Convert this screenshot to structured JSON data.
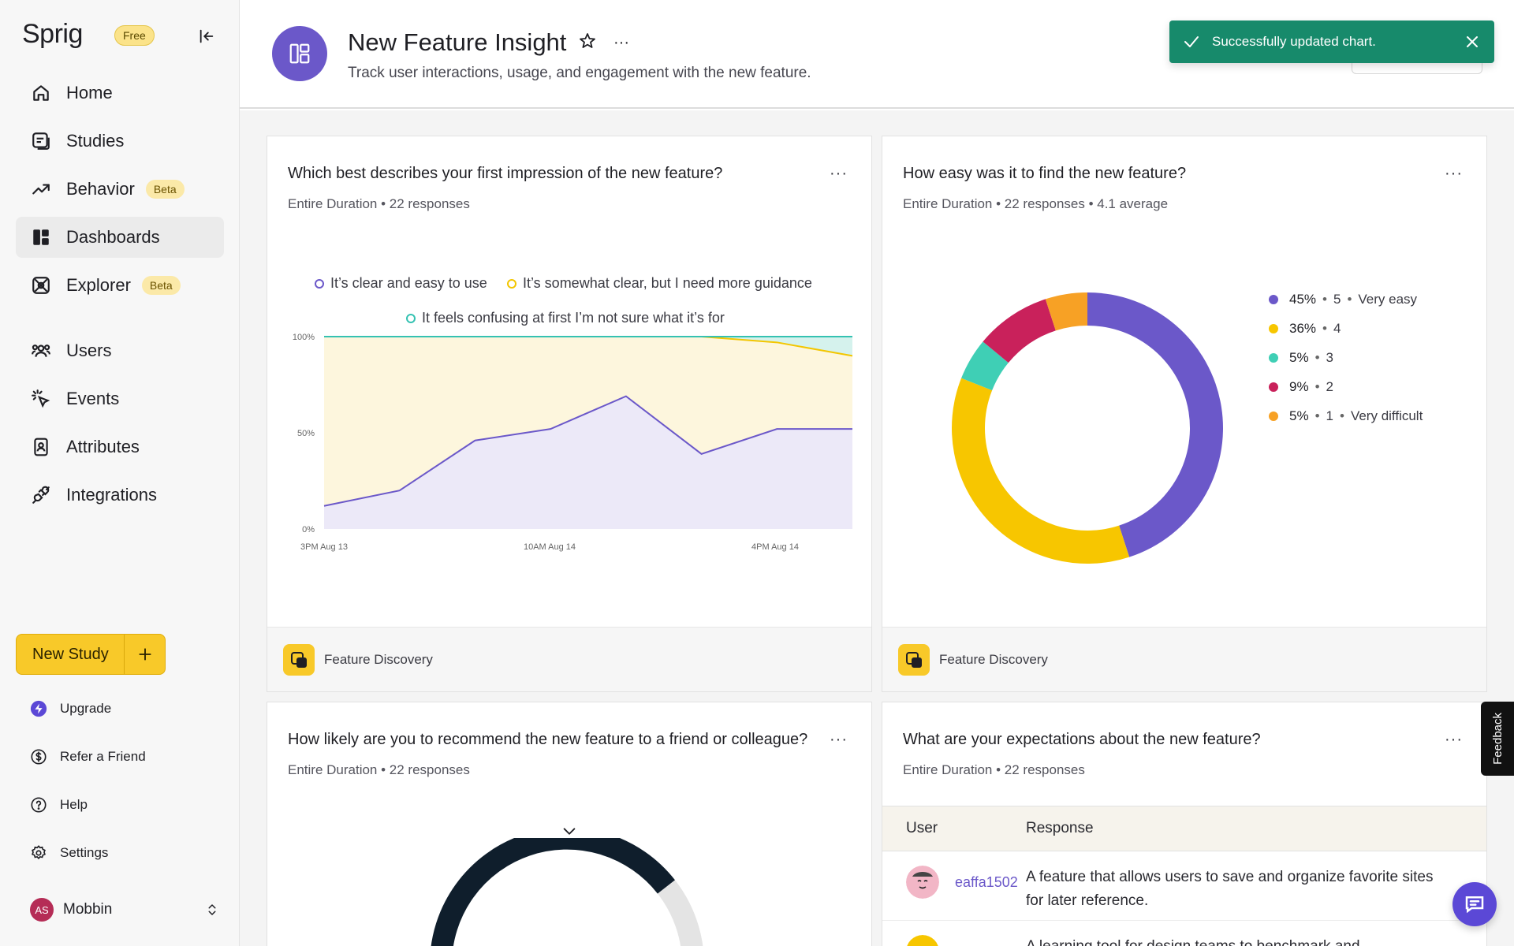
{
  "sidebar": {
    "logo": "Sprig",
    "plan_badge": "Free",
    "nav": [
      {
        "label": "Home",
        "icon": "home-icon"
      },
      {
        "label": "Studies",
        "icon": "studies-icon"
      },
      {
        "label": "Behavior",
        "icon": "trend-icon",
        "badge": "Beta"
      },
      {
        "label": "Dashboards",
        "icon": "dashboard-icon",
        "active": true
      },
      {
        "label": "Explorer",
        "icon": "explorer-icon",
        "badge": "Beta"
      },
      {
        "label": "Users",
        "icon": "users-icon"
      },
      {
        "label": "Events",
        "icon": "events-icon"
      },
      {
        "label": "Attributes",
        "icon": "attributes-icon"
      },
      {
        "label": "Integrations",
        "icon": "plug-icon"
      }
    ],
    "new_study_label": "New Study",
    "sub_nav": [
      {
        "label": "Upgrade",
        "icon": "upgrade-icon"
      },
      {
        "label": "Refer a Friend",
        "icon": "dollar-icon"
      },
      {
        "label": "Help",
        "icon": "help-icon"
      },
      {
        "label": "Settings",
        "icon": "gear-icon"
      }
    ],
    "user": {
      "initials": "AS",
      "name": "Mobbin"
    }
  },
  "header": {
    "title": "New Feature Insight",
    "subtitle": "Track user interactions, usage, and engagement with the new feature."
  },
  "toast": {
    "message": "Successfully updated chart."
  },
  "cards": {
    "c1": {
      "title": "Which best describes your first impression of the new feature?",
      "meta": "Entire Duration • 22 responses",
      "footer": "Feature Discovery"
    },
    "c2": {
      "title": "How easy was it to find the new feature?",
      "meta": "Entire Duration • 22 responses • 4.1 average",
      "footer": "Feature Discovery"
    },
    "c3": {
      "title": "How likely are you to recommend the new feature to a friend or colleague?",
      "meta": "Entire Duration • 22 responses"
    },
    "c4": {
      "title": "What are your expectations about the new feature?",
      "meta": "Entire Duration • 22 responses",
      "columns": [
        "User",
        "Response"
      ],
      "rows": [
        {
          "user": "eaffa1502",
          "response": "A feature that allows users to save and organize favorite sites for later reference."
        },
        {
          "user": "",
          "response": "A learning tool for design teams to benchmark and"
        }
      ]
    }
  },
  "chart_data": [
    {
      "type": "area",
      "stacked": "percent",
      "legend": [
        "It’s clear and easy to use",
        "It’s somewhat clear, but I need more guidance",
        "It feels confusing at first I’m not sure what it’s for"
      ],
      "colors": [
        "#6b58c9",
        "#f3c600",
        "#35c2b2"
      ],
      "x_ticks": [
        "3PM Aug 13",
        "10AM Aug 14",
        "4PM Aug 14"
      ],
      "y_ticks": [
        "100%",
        "50%",
        "0%"
      ],
      "ylim": [
        0,
        100
      ],
      "series": [
        {
          "values": [
            12,
            20,
            46,
            52,
            69,
            39,
            52,
            52
          ]
        },
        {
          "values": [
            88,
            80,
            54,
            48,
            31,
            61,
            45,
            38
          ]
        },
        {
          "values": [
            0,
            0,
            0,
            0,
            0,
            0,
            3,
            10
          ]
        }
      ]
    },
    {
      "type": "pie",
      "donut": true,
      "slices": [
        {
          "pct": "45%",
          "score": "5",
          "label": "Very easy",
          "value": 45,
          "color": "#6b58c9"
        },
        {
          "pct": "36%",
          "score": "4",
          "label": "",
          "value": 36,
          "color": "#f7c600"
        },
        {
          "pct": "5%",
          "score": "3",
          "label": "",
          "value": 5,
          "color": "#3fcfb5"
        },
        {
          "pct": "9%",
          "score": "2",
          "label": "",
          "value": 9,
          "color": "#c9215b"
        },
        {
          "pct": "5%",
          "score": "1",
          "label": "Very difficult",
          "value": 5,
          "color": "#f7a125"
        }
      ]
    }
  ]
}
